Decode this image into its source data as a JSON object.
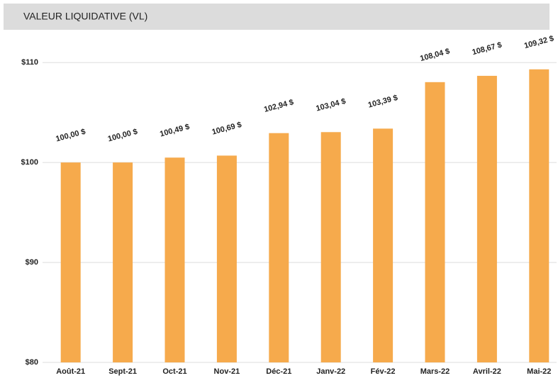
{
  "chart_data": {
    "type": "bar",
    "title": "VALEUR LIQUIDATIVE (VL)",
    "categories": [
      "Août-21",
      "Sept-21",
      "Oct-21",
      "Nov-21",
      "Déc-21",
      "Janv-22",
      "Fév-22",
      "Mars-22",
      "Avril-22",
      "Mai-22"
    ],
    "values": [
      100.0,
      100.0,
      100.49,
      100.69,
      102.94,
      103.04,
      103.39,
      108.04,
      108.67,
      109.32
    ],
    "value_labels": [
      "100,00 $",
      "100,00 $",
      "100,49 $",
      "100,69 $",
      "102,94 $",
      "103,04 $",
      "103,39 $",
      "108,04 $",
      "108,67 $",
      "109,32 $"
    ],
    "color": "#f6aa4c",
    "ylim": [
      80,
      112
    ],
    "yticks": [
      {
        "value": 80,
        "label": "$80"
      },
      {
        "value": 90,
        "label": "$90"
      },
      {
        "value": 100,
        "label": "$100"
      },
      {
        "value": 110,
        "label": "$110"
      }
    ],
    "grid": true
  }
}
